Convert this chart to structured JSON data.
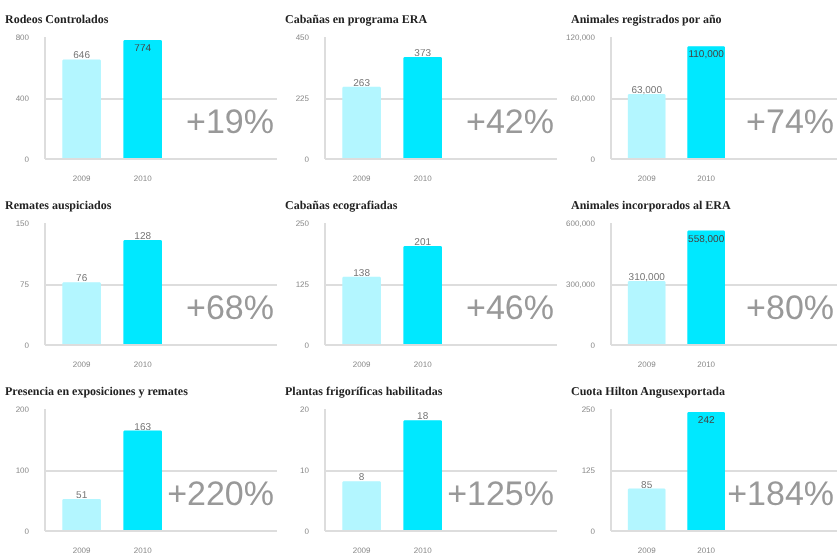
{
  "chart_data": [
    {
      "type": "bar",
      "title": "Rodeos Controlados",
      "categories": [
        "2009",
        "2010"
      ],
      "values": [
        646,
        774
      ],
      "colors": [
        "#b3f6ff",
        "#00e8ff"
      ],
      "ylim": [
        0,
        800
      ],
      "yticks": [
        0,
        400,
        800
      ],
      "grid": "y",
      "data_labels": true,
      "annotations": [
        "+19%"
      ]
    },
    {
      "type": "bar",
      "title": "Cabañas en programa ERA",
      "categories": [
        "2009",
        "2010"
      ],
      "values": [
        263,
        373
      ],
      "colors": [
        "#b3f6ff",
        "#00e8ff"
      ],
      "ylim": [
        0,
        450
      ],
      "yticks": [
        0,
        225,
        450
      ],
      "grid": "y",
      "data_labels": true,
      "annotations": [
        "+42%"
      ]
    },
    {
      "type": "bar",
      "title": "Animales registrados por año",
      "categories": [
        "2009",
        "2010"
      ],
      "values": [
        63000,
        110000
      ],
      "value_labels": [
        "63,000",
        "110,000"
      ],
      "colors": [
        "#b3f6ff",
        "#00e8ff"
      ],
      "ylim": [
        0,
        120000
      ],
      "yticks": [
        0,
        {
          "value": 60000,
          "label": "60,000"
        },
        {
          "value": 120000,
          "label": "120,000"
        }
      ],
      "grid": "y",
      "annotations": [
        "+74%"
      ]
    },
    {
      "type": "bar",
      "title": "Remates auspiciados",
      "categories": [
        "2009",
        "2010"
      ],
      "values": [
        76,
        128
      ],
      "colors": [
        "#b3f6ff",
        "#00e8ff"
      ],
      "ylim": [
        0,
        150
      ],
      "yticks": [
        0,
        75,
        150
      ],
      "grid": "y",
      "data_labels": true,
      "annotations": [
        "+68%"
      ]
    },
    {
      "type": "bar",
      "title": "Cabañas ecografiadas",
      "categories": [
        "2009",
        "2010"
      ],
      "values": [
        138,
        201
      ],
      "colors": [
        "#b3f6ff",
        "#00e8ff"
      ],
      "ylim": [
        0,
        250
      ],
      "yticks": [
        0,
        125,
        250
      ],
      "grid": "y",
      "data_labels": true,
      "annotations": [
        "+46%"
      ]
    },
    {
      "type": "bar",
      "title": "Animales incorporados al ERA",
      "categories": [
        "2009",
        "2010"
      ],
      "values": [
        310000,
        558000
      ],
      "value_labels": [
        "310,000",
        "558,000"
      ],
      "colors": [
        "#b3f6ff",
        "#00e8ff"
      ],
      "ylim": [
        0,
        600000
      ],
      "yticks": [
        0,
        {
          "value": 300000,
          "label": "300,000"
        },
        {
          "value": 600000,
          "label": "600,000"
        }
      ],
      "grid": "y",
      "annotations": [
        "+80%"
      ]
    },
    {
      "type": "bar",
      "title": "Presencia en exposiciones y remates",
      "categories": [
        "2009",
        "2010"
      ],
      "values": [
        51,
        163
      ],
      "colors": [
        "#b3f6ff",
        "#00e8ff"
      ],
      "ylim": [
        0,
        200
      ],
      "yticks": [
        0,
        100,
        200
      ],
      "grid": "y",
      "data_labels": true,
      "annotations": [
        "+220%"
      ]
    },
    {
      "type": "bar",
      "title": "Plantas frigoríficas habilitadas",
      "categories": [
        "2009",
        "2010"
      ],
      "values": [
        8,
        18
      ],
      "colors": [
        "#b3f6ff",
        "#00e8ff"
      ],
      "ylim": [
        0,
        20
      ],
      "yticks": [
        0,
        10,
        20
      ],
      "grid": "y",
      "data_labels": true,
      "annotations": [
        "+125%"
      ]
    },
    {
      "type": "bar",
      "title": "Cuota Hilton Angusexportada",
      "categories": [
        "2009",
        "2010"
      ],
      "values": [
        85,
        242
      ],
      "colors": [
        "#b3f6ff",
        "#00e8ff"
      ],
      "ylim": [
        0,
        250
      ],
      "yticks": [
        0,
        125,
        250
      ],
      "grid": "y",
      "data_labels": true,
      "annotations": [
        "+184%"
      ]
    }
  ]
}
